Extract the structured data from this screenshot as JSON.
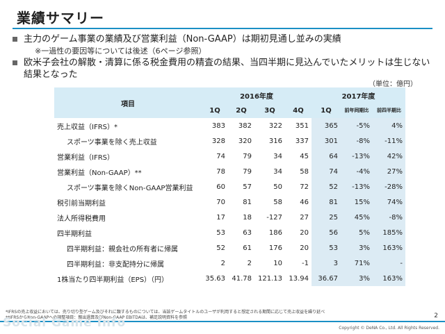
{
  "title": "業績サマリー",
  "bullets": [
    {
      "text": "主力のゲーム事業の業績及び営業利益（Non-GAAP）は期初見通し並みの実績",
      "sub": "※一過性の要因等については後述（6ページ参照）"
    },
    {
      "text": "欧米子会社の解散・清算に係る税金費用の精査の結果、当四半期に見込んでいたメリットは生じない結果となった",
      "sub": ""
    }
  ],
  "unit": "（単位：億円）",
  "table": {
    "header": {
      "item": "項目",
      "fy2016": "2016年度",
      "fy2017": "2017年度",
      "q1": "1Q",
      "q2": "2Q",
      "q3": "3Q",
      "q4": "4Q",
      "q1_2017": "1Q",
      "yoy": "前年同期比",
      "qoq": "前四半期比"
    },
    "rows": [
      {
        "label": "売上収益（IFRS）*",
        "v": [
          "383",
          "382",
          "322",
          "351",
          "365",
          "-5%",
          "4%"
        ]
      },
      {
        "label": "スポーツ事業を除く売上収益",
        "v": [
          "328",
          "320",
          "316",
          "337",
          "301",
          "-8%",
          "-11%"
        ]
      },
      {
        "label": "営業利益（IFRS）",
        "v": [
          "74",
          "79",
          "34",
          "45",
          "64",
          "-13%",
          "42%"
        ]
      },
      {
        "label": "営業利益（Non-GAAP）**",
        "v": [
          "78",
          "79",
          "34",
          "58",
          "74",
          "-4%",
          "27%"
        ]
      },
      {
        "label": "スポーツ事業を除くNon-GAAP営業利益",
        "v": [
          "60",
          "57",
          "50",
          "72",
          "52",
          "-13%",
          "-28%"
        ]
      },
      {
        "label": "税引前当期利益",
        "v": [
          "70",
          "81",
          "58",
          "46",
          "81",
          "15%",
          "74%"
        ]
      },
      {
        "label": "法人所得税費用",
        "v": [
          "17",
          "18",
          "-127",
          "27",
          "25",
          "45%",
          "-8%"
        ]
      },
      {
        "label": "四半期利益",
        "v": [
          "53",
          "63",
          "186",
          "20",
          "56",
          "5%",
          "185%"
        ]
      },
      {
        "label": "四半期利益：親会社の所有者に帰属",
        "v": [
          "52",
          "61",
          "176",
          "20",
          "53",
          "3%",
          "163%"
        ]
      },
      {
        "label": "四半期利益：非支配持分に帰属",
        "v": [
          "2",
          "2",
          "10",
          "-1",
          "3",
          "71%",
          "-"
        ]
      },
      {
        "label": "1株当たり四半期利益（EPS）（円）",
        "v": [
          "35.63",
          "41.78",
          "121.13",
          "13.94",
          "36.67",
          "3%",
          "163%"
        ]
      }
    ]
  },
  "footnotes": [
    "*IFRSの売上収益においては、売り切り型ゲーム及びそれに類するものについては、当該ゲームタイトルのユーザが利用すると想定される期間に応じて売上収益を繰り延べ",
    "**IFRSからNon-GAAPへの調整項目：親出過算及びNon-GAAP EBITDAは、補足説明資料を参照"
  ],
  "logo": "Social Game Info",
  "copyright": "Copyright © DeNA Co., Ltd. All Rights Reserved.",
  "page_number": "2"
}
